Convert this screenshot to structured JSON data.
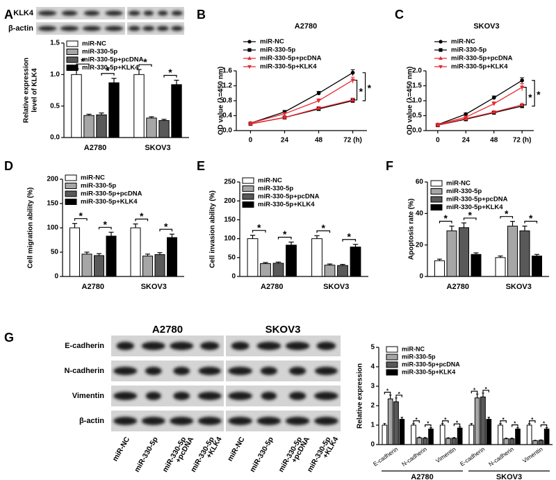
{
  "chart_data": [
    {
      "type": "bar",
      "panel": "A",
      "ylabel": [
        "Relative expression",
        "level of KLK4"
      ],
      "categories": [
        "A2780",
        "SKOV3"
      ],
      "series": [
        {
          "name": "miR-NC",
          "color": "#ffffff",
          "values": [
            1.0,
            1.0
          ],
          "errors": [
            0.09,
            0.08
          ]
        },
        {
          "name": "miR-330-5p",
          "color": "#a6a6a6",
          "values": [
            0.35,
            0.31
          ],
          "errors": [
            0.02,
            0.02
          ]
        },
        {
          "name": "miR-330-5p+pcDNA",
          "color": "#595959",
          "values": [
            0.36,
            0.27
          ],
          "errors": [
            0.03,
            0.02
          ]
        },
        {
          "name": "miR-330-5p+KLK4",
          "color": "#000000",
          "values": [
            0.87,
            0.84
          ],
          "errors": [
            0.07,
            0.07
          ]
        }
      ],
      "ylim": [
        0,
        1.5
      ],
      "yticks": [
        {
          "value": 0,
          "label": "0.0"
        },
        {
          "value": 0.5,
          "label": "0.5"
        },
        {
          "value": 1,
          "label": "1.0"
        },
        {
          "value": 1.5,
          "label": "1.5"
        }
      ],
      "annotation": "*",
      "legend": "upper left"
    },
    {
      "type": "line",
      "panel": "B",
      "title": "A2780",
      "ylabel": "OD value (λ=450 nm)",
      "x": [
        0,
        24,
        48,
        72
      ],
      "xlim": [
        -10,
        82
      ],
      "xticks": [
        0,
        24,
        48,
        {
          "value": 72,
          "label": "72 (h)"
        }
      ],
      "series": [
        {
          "name": "miR-NC",
          "color": "#000000",
          "marker": "circle",
          "values": [
            0.2,
            0.5,
            1.0,
            1.55
          ],
          "errors": [
            0.02,
            0.04,
            0.05,
            0.08
          ]
        },
        {
          "name": "miR-330-5p",
          "color": "#000000",
          "marker": "square",
          "values": [
            0.18,
            0.35,
            0.58,
            0.8
          ],
          "errors": [
            0.02,
            0.03,
            0.04,
            0.05
          ]
        },
        {
          "name": "miR-330-5p+pcDNA",
          "color": "#e8262d",
          "marker": "triangle-up",
          "values": [
            0.18,
            0.35,
            0.6,
            0.82
          ],
          "errors": [
            0.02,
            0.03,
            0.04,
            0.05
          ]
        },
        {
          "name": "miR-330-5p+KLK4",
          "color": "#e8262d",
          "marker": "triangle-down",
          "values": [
            0.2,
            0.45,
            0.8,
            1.35
          ],
          "errors": [
            0.02,
            0.03,
            0.05,
            0.08
          ]
        }
      ],
      "ylim": [
        0,
        1.6
      ],
      "yticks": [
        {
          "value": 0,
          "label": "0.0"
        },
        {
          "value": 0.4,
          "label": "0.4"
        },
        {
          "value": 0.8,
          "label": "0.8"
        },
        {
          "value": 1.2,
          "label": "1.2"
        },
        {
          "value": 1.6,
          "label": "1.6"
        }
      ],
      "annotation": "*",
      "legend": "upper left"
    },
    {
      "type": "line",
      "panel": "C",
      "title": "SKOV3",
      "ylabel": "OD value (λ=450 nm)",
      "x": [
        0,
        24,
        48,
        72
      ],
      "xlim": [
        -10,
        82
      ],
      "xticks": [
        0,
        24,
        48,
        {
          "value": 72,
          "label": "72 (h)"
        }
      ],
      "series": [
        {
          "name": "miR-NC",
          "color": "#000000",
          "marker": "circle",
          "values": [
            0.2,
            0.55,
            1.1,
            1.68
          ],
          "errors": [
            0.02,
            0.04,
            0.06,
            0.09
          ]
        },
        {
          "name": "miR-330-5p",
          "color": "#000000",
          "marker": "square",
          "values": [
            0.18,
            0.38,
            0.6,
            0.82
          ],
          "errors": [
            0.02,
            0.03,
            0.04,
            0.05
          ]
        },
        {
          "name": "miR-330-5p+pcDNA",
          "color": "#e8262d",
          "marker": "triangle-up",
          "values": [
            0.18,
            0.4,
            0.62,
            0.86
          ],
          "errors": [
            0.02,
            0.03,
            0.04,
            0.05
          ]
        },
        {
          "name": "miR-330-5p+KLK4",
          "color": "#e8262d",
          "marker": "triangle-down",
          "values": [
            0.2,
            0.45,
            0.9,
            1.45
          ],
          "errors": [
            0.02,
            0.03,
            0.06,
            0.12
          ]
        }
      ],
      "ylim": [
        0,
        2.0
      ],
      "yticks": [
        {
          "value": 0,
          "label": "0.0"
        },
        {
          "value": 0.5,
          "label": "0.5"
        },
        {
          "value": 1,
          "label": "1.0"
        },
        {
          "value": 1.5,
          "label": "1.5"
        },
        {
          "value": 2,
          "label": "2.0"
        }
      ],
      "annotation": "*",
      "legend": "upper left"
    },
    {
      "type": "bar",
      "panel": "D",
      "ylabel": "Cell migration ability (%)",
      "categories": [
        "A2780",
        "SKOV3"
      ],
      "series": [
        {
          "name": "miR-NC",
          "color": "#ffffff",
          "values": [
            100,
            100
          ],
          "errors": [
            9,
            8
          ]
        },
        {
          "name": "miR-330-5p",
          "color": "#a6a6a6",
          "values": [
            46,
            42
          ],
          "errors": [
            4,
            4
          ]
        },
        {
          "name": "miR-330-5p+pcDNA",
          "color": "#595959",
          "values": [
            43,
            45
          ],
          "errors": [
            4,
            4
          ]
        },
        {
          "name": "miR-330-5p+KLK4",
          "color": "#000000",
          "values": [
            83,
            80
          ],
          "errors": [
            8,
            7
          ]
        }
      ],
      "ylim": [
        0,
        200
      ],
      "yticks": [
        0,
        50,
        100,
        150,
        200
      ],
      "annotation": "*",
      "legend": "upper left"
    },
    {
      "type": "bar",
      "panel": "E",
      "ylabel": "Cell invasion ability (%)",
      "categories": [
        "A2780",
        "SKOV3"
      ],
      "series": [
        {
          "name": "miR-NC",
          "color": "#ffffff",
          "values": [
            100,
            100
          ],
          "errors": [
            9,
            8
          ]
        },
        {
          "name": "miR-330-5p",
          "color": "#a6a6a6",
          "values": [
            34,
            30
          ],
          "errors": [
            3,
            3
          ]
        },
        {
          "name": "miR-330-5p+pcDNA",
          "color": "#595959",
          "values": [
            35,
            29
          ],
          "errors": [
            3,
            3
          ]
        },
        {
          "name": "miR-330-5p+KLK4",
          "color": "#000000",
          "values": [
            83,
            78
          ],
          "errors": [
            8,
            7
          ]
        }
      ],
      "ylim": [
        0,
        250
      ],
      "yticks": [
        0,
        50,
        100,
        150,
        200,
        250
      ],
      "annotation": "*",
      "legend": "upper left"
    },
    {
      "type": "bar",
      "panel": "F",
      "ylabel": "Apoptosis rate (%)",
      "categories": [
        "A2780",
        "SKOV3"
      ],
      "series": [
        {
          "name": "miR-NC",
          "color": "#ffffff",
          "values": [
            10,
            12
          ],
          "errors": [
            1,
            1
          ]
        },
        {
          "name": "miR-330-5p",
          "color": "#a6a6a6",
          "values": [
            29,
            32
          ],
          "errors": [
            3,
            3
          ]
        },
        {
          "name": "miR-330-5p+pcDNA",
          "color": "#595959",
          "values": [
            31,
            29
          ],
          "errors": [
            3,
            3
          ]
        },
        {
          "name": "miR-330-5p+KLK4",
          "color": "#000000",
          "values": [
            14,
            13
          ],
          "errors": [
            1,
            1
          ]
        }
      ],
      "ylim": [
        0,
        60
      ],
      "yticks": [
        0,
        20,
        40,
        60
      ],
      "annotation": "*",
      "legend": "upper left"
    },
    {
      "type": "bar",
      "panel": "G",
      "ylabel": "Relative expression",
      "categories": [
        "E-cadherin",
        "N-cadherin",
        "Vimentin",
        "E-cadherin",
        "N-cadherin",
        "Vimentin"
      ],
      "category_groups": [
        "A2780",
        "SKOV3"
      ],
      "series": [
        {
          "name": "miR-NC",
          "color": "#ffffff",
          "values": [
            1.0,
            1.0,
            1.0,
            1.0,
            1.0,
            1.0
          ],
          "errors": [
            0.08,
            0.08,
            0.08,
            0.08,
            0.08,
            0.08
          ]
        },
        {
          "name": "miR-330-5p",
          "color": "#a6a6a6",
          "values": [
            2.35,
            0.35,
            0.32,
            2.4,
            0.3,
            0.2
          ],
          "errors": [
            0.2,
            0.03,
            0.03,
            0.2,
            0.03,
            0.02
          ]
        },
        {
          "name": "miR-330-5p+pcDNA",
          "color": "#595959",
          "values": [
            2.2,
            0.33,
            0.33,
            2.45,
            0.3,
            0.22
          ],
          "errors": [
            0.2,
            0.03,
            0.03,
            0.2,
            0.03,
            0.02
          ]
        },
        {
          "name": "miR-330-5p+KLK4",
          "color": "#000000",
          "values": [
            1.3,
            0.8,
            0.85,
            1.3,
            0.8,
            0.8
          ],
          "errors": [
            0.1,
            0.07,
            0.07,
            0.1,
            0.07,
            0.07
          ]
        }
      ],
      "ylim": [
        0,
        5
      ],
      "yticks": [
        0,
        1,
        2,
        3,
        4,
        5
      ],
      "annotation": "*",
      "legend": "upper left"
    }
  ],
  "blots": [
    {
      "rows": [
        "KLK4",
        "β-actin"
      ]
    },
    {
      "rows": [
        "E-cadherin",
        "N-cadherin",
        "Vimentin",
        "β-actin"
      ],
      "groups": [
        "A2780",
        "SKOV3"
      ],
      "lanes": [
        [
          "miR-NC"
        ],
        [
          "miR-330-5p"
        ],
        [
          "miR-330-5p",
          "+pcDNA"
        ],
        [
          "miR-330-5p",
          "+KLK4"
        ],
        [
          "miR-NC"
        ],
        [
          "miR-330-5p"
        ],
        [
          "miR-330-5p",
          "+pcDNA"
        ],
        [
          "miR-330-5p",
          "+KLK4"
        ]
      ]
    }
  ]
}
